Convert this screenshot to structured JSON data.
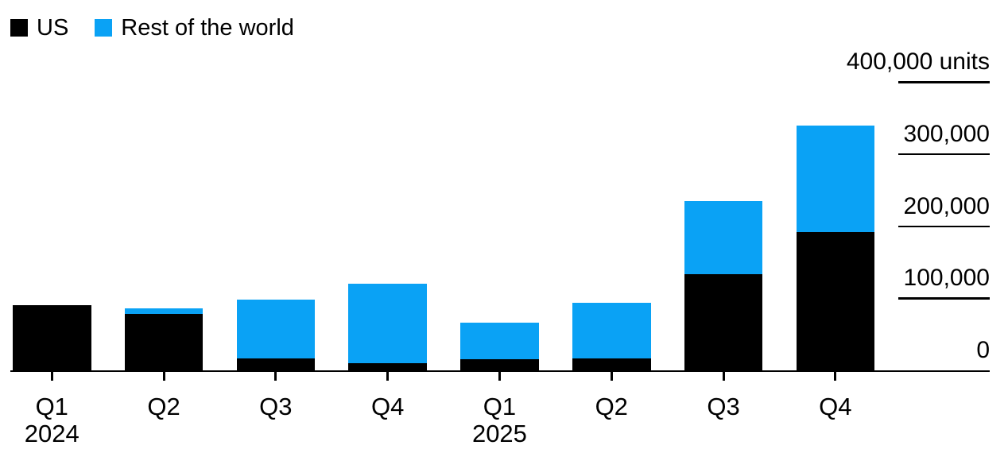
{
  "legend": {
    "items": [
      {
        "label": "US",
        "color": "#000000"
      },
      {
        "label": "Rest of the world",
        "color": "#0aa2f5"
      }
    ]
  },
  "chart_data": {
    "type": "bar",
    "subtype": "stacked-vertical",
    "unit": "units",
    "categories": [
      "Q1",
      "Q2",
      "Q3",
      "Q4",
      "Q1",
      "Q2",
      "Q3",
      "Q4"
    ],
    "year_labels": [
      {
        "index": 0,
        "label": "2024"
      },
      {
        "index": 4,
        "label": "2025"
      }
    ],
    "series": [
      {
        "name": "US",
        "color": "#000000",
        "values": [
          90000,
          78000,
          17000,
          10000,
          15000,
          16000,
          133000,
          192000
        ]
      },
      {
        "name": "Rest of the world",
        "color": "#0aa2f5",
        "values": [
          0,
          8000,
          81000,
          110000,
          51000,
          78000,
          102000,
          147000
        ]
      }
    ],
    "totals": [
      90000,
      86000,
      98000,
      120000,
      66000,
      94000,
      235000,
      339000
    ],
    "ylim": [
      0,
      400000
    ],
    "yticks": [
      {
        "value": 400000,
        "label": "400,000 units"
      },
      {
        "value": 300000,
        "label": "300,000"
      },
      {
        "value": 200000,
        "label": "200,000"
      },
      {
        "value": 100000,
        "label": "100,000"
      },
      {
        "value": 0,
        "label": "0"
      }
    ],
    "legend_position": "top-left",
    "grid": "right-side-segments",
    "axis_side": "right"
  }
}
